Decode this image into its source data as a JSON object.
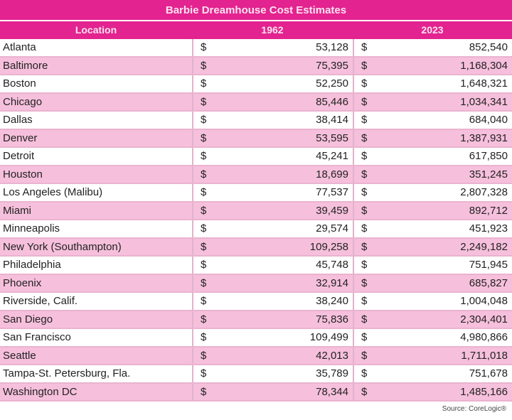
{
  "title": "Barbie Dreamhouse Cost Estimates",
  "headers": [
    "Location",
    "1962",
    "2023"
  ],
  "currency": "$",
  "rows": [
    {
      "location": "Atlanta",
      "y1962": "53,128",
      "y2023": "852,540"
    },
    {
      "location": "Baltimore",
      "y1962": "75,395",
      "y2023": "1,168,304"
    },
    {
      "location": "Boston",
      "y1962": "52,250",
      "y2023": "1,648,321"
    },
    {
      "location": "Chicago",
      "y1962": "85,446",
      "y2023": "1,034,341"
    },
    {
      "location": "Dallas",
      "y1962": "38,414",
      "y2023": "684,040"
    },
    {
      "location": "Denver",
      "y1962": "53,595",
      "y2023": "1,387,931"
    },
    {
      "location": "Detroit",
      "y1962": "45,241",
      "y2023": "617,850"
    },
    {
      "location": "Houston",
      "y1962": "18,699",
      "y2023": "351,245"
    },
    {
      "location": "Los Angeles (Malibu)",
      "y1962": "77,537",
      "y2023": "2,807,328"
    },
    {
      "location": "Miami",
      "y1962": "39,459",
      "y2023": "892,712"
    },
    {
      "location": "Minneapolis",
      "y1962": "29,574",
      "y2023": "451,923"
    },
    {
      "location": "New York (Southampton)",
      "y1962": "109,258",
      "y2023": "2,249,182"
    },
    {
      "location": "Philadelphia",
      "y1962": "45,748",
      "y2023": "751,945"
    },
    {
      "location": "Phoenix",
      "y1962": "32,914",
      "y2023": "685,827"
    },
    {
      "location": "Riverside, Calif.",
      "y1962": "38,240",
      "y2023": "1,004,048"
    },
    {
      "location": "San Diego",
      "y1962": "75,836",
      "y2023": "2,304,401"
    },
    {
      "location": "San Francisco",
      "y1962": "109,499",
      "y2023": "4,980,866"
    },
    {
      "location": "Seattle",
      "y1962": "42,013",
      "y2023": "1,711,018"
    },
    {
      "location": "Tampa-St. Petersburg, Fla.",
      "y1962": "35,789",
      "y2023": "751,678"
    },
    {
      "location": "Washington DC",
      "y1962": "78,344",
      "y2023": "1,485,166"
    }
  ],
  "source": "Source: CoreLogic®"
}
